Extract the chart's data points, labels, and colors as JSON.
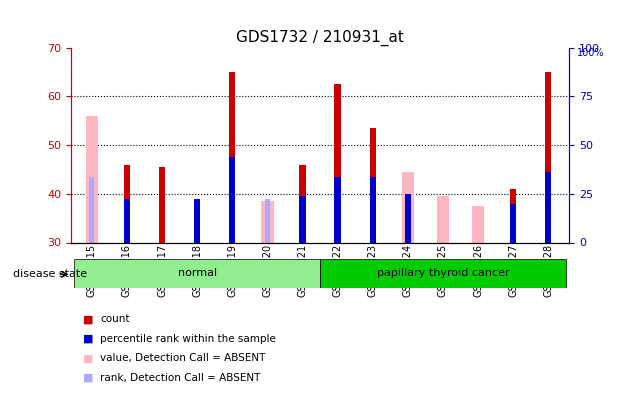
{
  "title": "GDS1732 / 210931_at",
  "samples": [
    "GSM85215",
    "GSM85216",
    "GSM85217",
    "GSM85218",
    "GSM85219",
    "GSM85220",
    "GSM85221",
    "GSM85222",
    "GSM85223",
    "GSM85224",
    "GSM85225",
    "GSM85226",
    "GSM85227",
    "GSM85228"
  ],
  "red_values": [
    null,
    46.0,
    45.5,
    null,
    65.0,
    null,
    46.0,
    62.5,
    53.5,
    null,
    null,
    null,
    41.0,
    65.0
  ],
  "blue_values": [
    null,
    39.0,
    null,
    39.0,
    47.5,
    null,
    39.5,
    43.5,
    43.5,
    40.0,
    null,
    null,
    38.0,
    44.5
  ],
  "pink_values": [
    56.0,
    null,
    null,
    null,
    null,
    38.5,
    null,
    null,
    null,
    44.5,
    39.5,
    37.5,
    null,
    null
  ],
  "lavender_values": [
    43.5,
    null,
    null,
    null,
    null,
    39.0,
    null,
    null,
    null,
    null,
    null,
    null,
    null,
    null
  ],
  "ylim_left": [
    30,
    70
  ],
  "ylim_right": [
    0,
    100
  ],
  "yticks_left": [
    30,
    40,
    50,
    60,
    70
  ],
  "yticks_right": [
    0,
    25,
    50,
    75,
    100
  ],
  "normal_indices": [
    0,
    1,
    2,
    3,
    4,
    5,
    6
  ],
  "cancer_indices": [
    7,
    8,
    9,
    10,
    11,
    12,
    13
  ],
  "normal_color": "#90EE90",
  "cancer_color": "#00CC00",
  "red_color": "#CC0000",
  "blue_color": "#0000CC",
  "pink_color": "#FFB6C1",
  "lavender_color": "#AAAAFF",
  "left_axis_color": "#CC0000",
  "right_axis_color": "#0000CC",
  "grid_dotted_at": [
    40,
    50,
    60
  ],
  "legend_items": [
    [
      "#CC0000",
      "count"
    ],
    [
      "#0000CC",
      "percentile rank within the sample"
    ],
    [
      "#FFB6C1",
      "value, Detection Call = ABSENT"
    ],
    [
      "#AAAAFF",
      "rank, Detection Call = ABSENT"
    ]
  ]
}
